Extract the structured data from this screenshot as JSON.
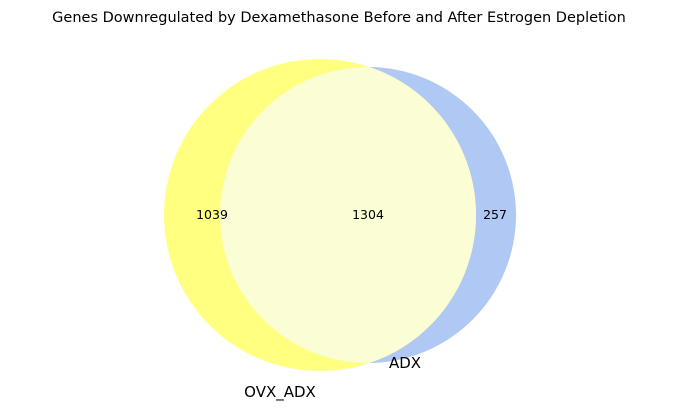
{
  "chart_data": {
    "type": "venn",
    "title": "Genes Downregulated by Dexamethasone Before and After Estrogen Depletion",
    "sets": [
      {
        "name": "OVX_ADX",
        "color": "#ffff80"
      },
      {
        "name": "ADX",
        "color": "#b0c8f4"
      }
    ],
    "overlap_color": "#fbfed4",
    "regions": {
      "only_ovx_adx": "1039",
      "both": "1304",
      "only_adx": "257"
    }
  }
}
